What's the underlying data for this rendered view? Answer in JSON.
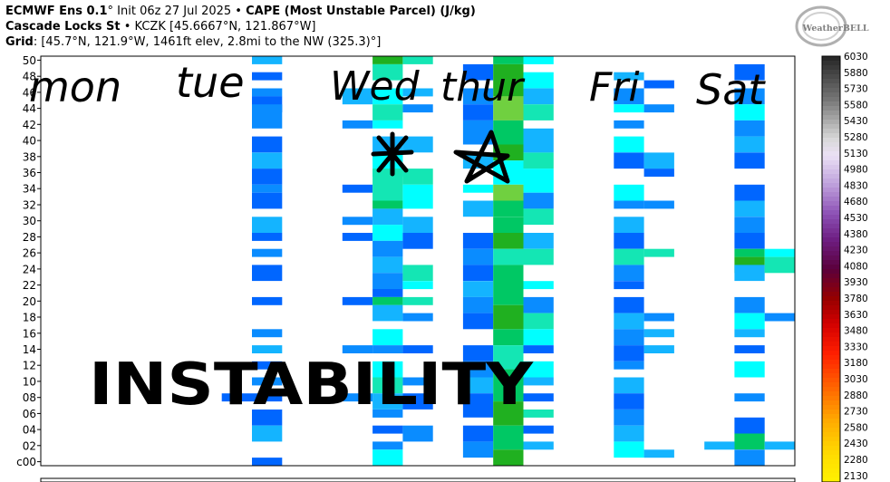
{
  "header": {
    "line1_model": "ECMWF Ens 0.1",
    "line1_deg": "°",
    "line1_init": " Init 06z 27 Jul 2025",
    "line1_sep": " • ",
    "line1_param": "CAPE (Most Unstable Parcel) (J/kg)",
    "line2_station": "Cascade Locks St",
    "line2_sep": " • ",
    "line2_coords": "KCZK [45.6667°N, 121.867°W]",
    "line3_label": "Grid",
    "line3_value": ": [45.7°N, 121.9°W, 1461ft elev, 2.8mi to the NW (325.3)°]"
  },
  "logo": {
    "text": "WeatherBELL"
  },
  "annotations": {
    "days": [
      "mon",
      "tue",
      "Wed",
      "thur",
      "Fri",
      "Sat"
    ],
    "caption": "INSTABILITY"
  },
  "colors": {
    "c1": "#0066ff",
    "c2": "#0a8cff",
    "c3": "#14b4ff",
    "c4": "#00ffff",
    "c5": "#14e6b4",
    "c6": "#00c864",
    "c7": "#20b020",
    "c8": "#70d040"
  },
  "chart_data": {
    "type": "heatmap",
    "title": "CAPE (Most Unstable Parcel) (J/kg)",
    "ylabel": "",
    "y_ticks": [
      "c00",
      "02",
      "04",
      "06",
      "08",
      "10",
      "12",
      "14",
      "16",
      "18",
      "20",
      "22",
      "24",
      "26",
      "28",
      "30",
      "32",
      "34",
      "36",
      "38",
      "40",
      "42",
      "44",
      "46",
      "48",
      "50"
    ],
    "ylim": [
      0,
      51
    ],
    "x_columns": 25,
    "colorbar": {
      "ticks": [
        6030,
        5880,
        5730,
        5580,
        5430,
        5280,
        5130,
        4980,
        4830,
        4680,
        4530,
        4380,
        4230,
        4080,
        3930,
        3780,
        3630,
        3480,
        3330,
        3180,
        3030,
        2880,
        2730,
        2580,
        2430,
        2280,
        2130
      ],
      "min_shown": 2130,
      "max": 6030
    },
    "cells": [
      {
        "col": 7,
        "rows": [
          [
            50,
            50,
            3
          ],
          [
            48,
            48,
            1
          ],
          [
            46,
            46,
            2
          ],
          [
            45,
            44,
            1
          ],
          [
            44,
            42,
            2
          ],
          [
            40,
            39,
            1
          ],
          [
            38,
            37,
            3
          ],
          [
            36,
            35,
            1
          ],
          [
            34,
            34,
            2
          ],
          [
            33,
            32,
            1
          ],
          [
            30,
            29,
            3
          ],
          [
            28,
            28,
            1
          ],
          [
            26,
            26,
            2
          ],
          [
            24,
            23,
            1
          ],
          [
            20,
            20,
            1
          ],
          [
            16,
            16,
            2
          ],
          [
            14,
            14,
            3
          ],
          [
            12,
            12,
            1
          ],
          [
            10,
            10,
            2
          ],
          [
            8,
            8,
            1
          ],
          [
            6,
            5,
            1
          ],
          [
            4,
            3,
            3
          ],
          [
            0,
            0,
            1
          ]
        ]
      },
      {
        "col": 6,
        "rows": [
          [
            8,
            8,
            1
          ]
        ]
      },
      {
        "col": 10,
        "rows": [
          [
            46,
            45,
            3
          ],
          [
            42,
            42,
            2
          ],
          [
            34,
            34,
            1
          ],
          [
            30,
            30,
            2
          ],
          [
            28,
            28,
            1
          ],
          [
            20,
            20,
            1
          ],
          [
            14,
            14,
            2
          ],
          [
            8,
            8,
            2
          ]
        ]
      },
      {
        "col": 11,
        "rows": [
          [
            50,
            50,
            7
          ],
          [
            49,
            48,
            5
          ],
          [
            46,
            45,
            4
          ],
          [
            44,
            43,
            5
          ],
          [
            42,
            42,
            4
          ],
          [
            40,
            38,
            3
          ],
          [
            38,
            36,
            4
          ],
          [
            36,
            33,
            5
          ],
          [
            32,
            32,
            6
          ],
          [
            31,
            30,
            3
          ],
          [
            29,
            28,
            4
          ],
          [
            27,
            26,
            2
          ],
          [
            25,
            24,
            3
          ],
          [
            23,
            22,
            2
          ],
          [
            21,
            21,
            1
          ],
          [
            20,
            20,
            6
          ],
          [
            19,
            18,
            3
          ],
          [
            16,
            15,
            4
          ],
          [
            14,
            14,
            2
          ],
          [
            12,
            11,
            4
          ],
          [
            10,
            9,
            5
          ],
          [
            8,
            7,
            3
          ],
          [
            6,
            6,
            2
          ],
          [
            4,
            4,
            1
          ],
          [
            2,
            2,
            2
          ],
          [
            1,
            0,
            4
          ]
        ]
      },
      {
        "col": 12,
        "rows": [
          [
            50,
            50,
            5
          ],
          [
            46,
            46,
            3
          ],
          [
            44,
            44,
            2
          ],
          [
            40,
            39,
            3
          ],
          [
            36,
            35,
            5
          ],
          [
            34,
            32,
            4
          ],
          [
            30,
            29,
            3
          ],
          [
            28,
            27,
            1
          ],
          [
            24,
            23,
            5
          ],
          [
            22,
            22,
            4
          ],
          [
            20,
            20,
            5
          ],
          [
            18,
            18,
            2
          ],
          [
            14,
            14,
            1
          ],
          [
            10,
            10,
            2
          ],
          [
            8,
            7,
            1
          ],
          [
            4,
            3,
            2
          ]
        ]
      },
      {
        "col": 14,
        "rows": [
          [
            49,
            48,
            1
          ],
          [
            46,
            45,
            2
          ],
          [
            44,
            43,
            1
          ],
          [
            42,
            40,
            2
          ],
          [
            38,
            37,
            3
          ],
          [
            34,
            34,
            4
          ],
          [
            32,
            31,
            3
          ],
          [
            28,
            27,
            1
          ],
          [
            26,
            25,
            2
          ],
          [
            24,
            23,
            1
          ],
          [
            22,
            21,
            3
          ],
          [
            20,
            19,
            2
          ],
          [
            18,
            17,
            1
          ],
          [
            14,
            13,
            1
          ],
          [
            12,
            11,
            2
          ],
          [
            10,
            9,
            3
          ],
          [
            8,
            6,
            1
          ],
          [
            4,
            3,
            1
          ],
          [
            2,
            1,
            2
          ]
        ]
      },
      {
        "col": 15,
        "rows": [
          [
            50,
            50,
            6
          ],
          [
            49,
            46,
            7
          ],
          [
            45,
            43,
            8
          ],
          [
            42,
            40,
            6
          ],
          [
            39,
            38,
            7
          ],
          [
            37,
            35,
            4
          ],
          [
            34,
            33,
            8
          ],
          [
            32,
            31,
            6
          ],
          [
            30,
            29,
            6
          ],
          [
            28,
            27,
            7
          ],
          [
            26,
            25,
            5
          ],
          [
            24,
            22,
            6
          ],
          [
            21,
            20,
            6
          ],
          [
            19,
            17,
            7
          ],
          [
            16,
            15,
            6
          ],
          [
            14,
            12,
            5
          ],
          [
            11,
            8,
            6
          ],
          [
            7,
            5,
            7
          ],
          [
            4,
            2,
            6
          ],
          [
            1,
            0,
            7
          ]
        ]
      },
      {
        "col": 16,
        "rows": [
          [
            50,
            50,
            4
          ],
          [
            48,
            47,
            4
          ],
          [
            46,
            45,
            3
          ],
          [
            44,
            43,
            5
          ],
          [
            41,
            39,
            3
          ],
          [
            38,
            37,
            5
          ],
          [
            36,
            34,
            4
          ],
          [
            33,
            32,
            2
          ],
          [
            31,
            30,
            5
          ],
          [
            28,
            27,
            3
          ],
          [
            26,
            25,
            5
          ],
          [
            22,
            22,
            4
          ],
          [
            20,
            19,
            2
          ],
          [
            18,
            17,
            5
          ],
          [
            16,
            15,
            4
          ],
          [
            14,
            14,
            1
          ],
          [
            12,
            11,
            4
          ],
          [
            10,
            10,
            3
          ],
          [
            8,
            8,
            1
          ],
          [
            6,
            6,
            5
          ],
          [
            4,
            4,
            1
          ],
          [
            2,
            2,
            3
          ]
        ]
      },
      {
        "col": 19,
        "rows": [
          [
            48,
            48,
            3
          ],
          [
            46,
            45,
            2
          ],
          [
            44,
            44,
            4
          ],
          [
            42,
            42,
            2
          ],
          [
            40,
            39,
            4
          ],
          [
            38,
            37,
            1
          ],
          [
            34,
            33,
            4
          ],
          [
            32,
            32,
            2
          ],
          [
            30,
            29,
            3
          ],
          [
            28,
            27,
            1
          ],
          [
            26,
            25,
            5
          ],
          [
            24,
            23,
            2
          ],
          [
            22,
            22,
            1
          ],
          [
            20,
            19,
            1
          ],
          [
            18,
            17,
            3
          ],
          [
            16,
            15,
            2
          ],
          [
            14,
            13,
            1
          ],
          [
            12,
            12,
            2
          ],
          [
            10,
            9,
            3
          ],
          [
            8,
            7,
            1
          ],
          [
            6,
            5,
            2
          ],
          [
            4,
            3,
            3
          ],
          [
            2,
            1,
            4
          ]
        ]
      },
      {
        "col": 20,
        "rows": [
          [
            47,
            47,
            1
          ],
          [
            44,
            44,
            2
          ],
          [
            38,
            37,
            3
          ],
          [
            36,
            36,
            1
          ],
          [
            32,
            32,
            2
          ],
          [
            26,
            26,
            5
          ],
          [
            18,
            18,
            2
          ],
          [
            16,
            16,
            3
          ],
          [
            14,
            14,
            3
          ],
          [
            1,
            1,
            3
          ]
        ]
      },
      {
        "col": 23,
        "rows": [
          [
            49,
            48,
            1
          ],
          [
            46,
            45,
            2
          ],
          [
            44,
            43,
            4
          ],
          [
            42,
            41,
            2
          ],
          [
            40,
            39,
            3
          ],
          [
            38,
            37,
            1
          ],
          [
            34,
            33,
            1
          ],
          [
            32,
            31,
            3
          ],
          [
            30,
            29,
            2
          ],
          [
            28,
            27,
            1
          ],
          [
            26,
            26,
            6
          ],
          [
            25,
            24,
            7
          ],
          [
            24,
            23,
            3
          ],
          [
            20,
            19,
            2
          ],
          [
            18,
            17,
            4
          ],
          [
            16,
            16,
            3
          ],
          [
            14,
            14,
            1
          ],
          [
            12,
            11,
            4
          ],
          [
            8,
            8,
            2
          ],
          [
            5,
            4,
            1
          ],
          [
            3,
            2,
            6
          ],
          [
            1,
            0,
            2
          ]
        ]
      },
      {
        "col": 24,
        "rows": [
          [
            26,
            26,
            4
          ],
          [
            25,
            24,
            5
          ],
          [
            18,
            18,
            2
          ],
          [
            2,
            2,
            3
          ]
        ]
      },
      {
        "col": 22,
        "rows": [
          [
            2,
            2,
            3
          ]
        ]
      }
    ]
  }
}
